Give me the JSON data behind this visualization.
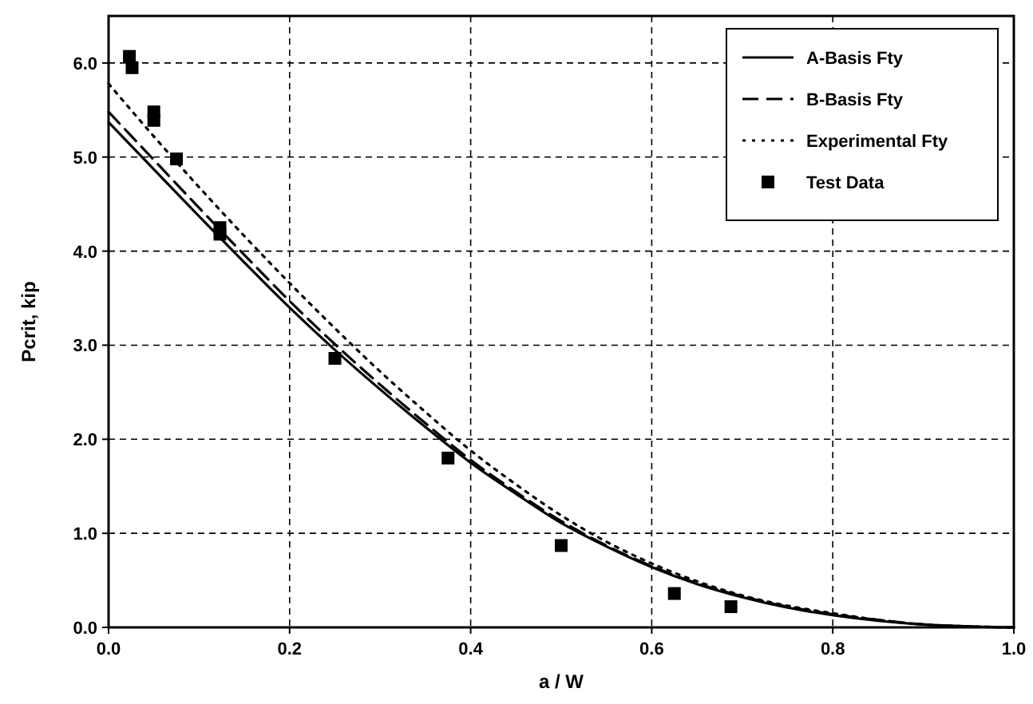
{
  "chart_data": {
    "type": "line",
    "xlabel": "a / W",
    "ylabel": "Pcrit, kip",
    "xlim": [
      0,
      1
    ],
    "ylim": [
      0,
      6.5
    ],
    "xticks": [
      {
        "value": 0,
        "label": "0.0"
      },
      {
        "value": 0.2,
        "label": "0.2"
      },
      {
        "value": 0.4,
        "label": "0.4"
      },
      {
        "value": 0.6,
        "label": "0.6"
      },
      {
        "value": 0.8,
        "label": "0.8"
      },
      {
        "value": 1,
        "label": "1.0"
      }
    ],
    "yticks": [
      {
        "value": 0,
        "label": "0.0"
      },
      {
        "value": 1,
        "label": "1.0"
      },
      {
        "value": 2,
        "label": "2.0"
      },
      {
        "value": 3,
        "label": "3.0"
      },
      {
        "value": 4,
        "label": "4.0"
      },
      {
        "value": 5,
        "label": "5.0"
      },
      {
        "value": 6,
        "label": "6.0"
      }
    ],
    "grid": true,
    "legend": "top right",
    "marker": "none",
    "x": [
      0,
      0.05,
      0.1,
      0.15,
      0.2,
      0.25,
      0.3,
      0.35,
      0.4,
      0.45,
      0.5,
      0.55,
      0.6,
      0.65,
      0.7,
      0.75,
      0.8,
      0.85,
      0.9,
      0.95,
      1
    ],
    "series": [
      {
        "name": "A-Basis Fty",
        "color": "#000000",
        "line_style": "solid",
        "values": [
          5.37,
          4.87,
          4.37,
          3.88,
          3.4,
          2.95,
          2.53,
          2.13,
          1.75,
          1.42,
          1.11,
          0.86,
          0.64,
          0.46,
          0.32,
          0.21,
          0.13,
          0.07,
          0.03,
          0.01,
          0
        ]
      },
      {
        "name": "B-Basis Fty",
        "color": "#000000",
        "line_style": "dashed",
        "values": [
          5.48,
          4.97,
          4.46,
          3.96,
          3.47,
          3.01,
          2.58,
          2.17,
          1.78,
          1.44,
          1.13,
          0.87,
          0.65,
          0.47,
          0.33,
          0.22,
          0.14,
          0.08,
          0.03,
          0.01,
          0
        ]
      },
      {
        "name": "Experimental Fty",
        "color": "#000000",
        "line_style": "dotted",
        "values": [
          5.78,
          5.22,
          4.68,
          4.16,
          3.66,
          3.18,
          2.72,
          2.29,
          1.88,
          1.52,
          1.19,
          0.91,
          0.68,
          0.49,
          0.34,
          0.23,
          0.15,
          0.08,
          0.03,
          0.01,
          0
        ]
      },
      {
        "name": "Test Data",
        "type": "scatter",
        "marker": "square",
        "color": "#000000",
        "x": [
          0.023,
          0.026,
          0.05,
          0.05,
          0.075,
          0.123,
          0.123,
          0.25,
          0.375,
          0.5,
          0.625,
          0.6875
        ],
        "values": [
          6.07,
          5.95,
          5.48,
          5.39,
          4.98,
          4.25,
          4.18,
          2.86,
          1.8,
          0.87,
          0.36,
          0.22
        ]
      }
    ]
  }
}
